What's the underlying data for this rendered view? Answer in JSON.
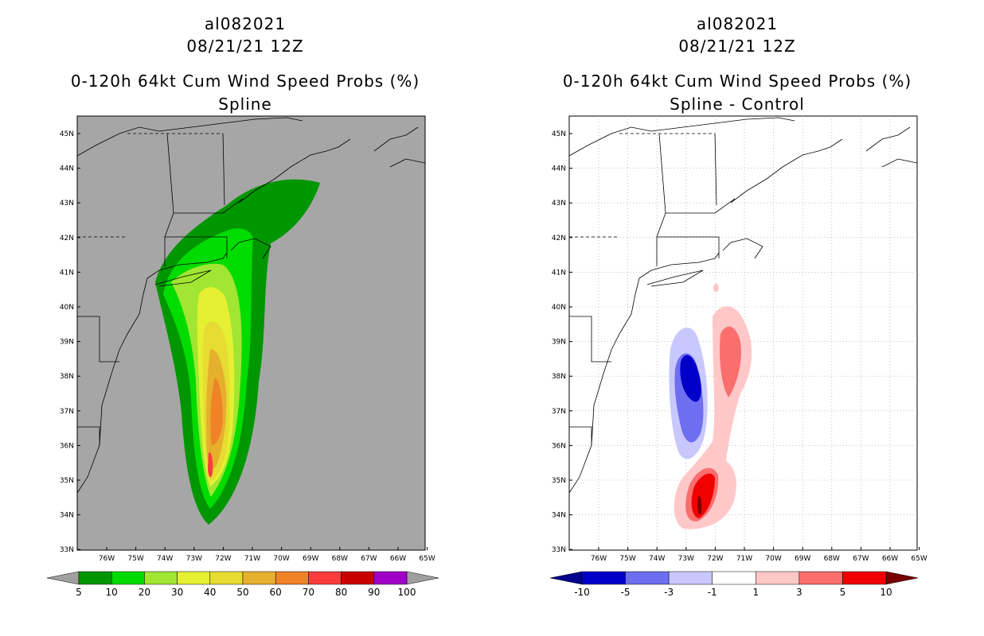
{
  "panels": [
    {
      "storm_id": "al082021",
      "datetime": "08/21/21 12Z",
      "product": "0-120h 64kt Cum Wind Speed Probs (%)",
      "subtitle": "Spline",
      "lat_labels": [
        "45N",
        "44N",
        "43N",
        "42N",
        "41N",
        "40N",
        "39N",
        "38N",
        "37N",
        "36N",
        "35N",
        "34N",
        "33N"
      ],
      "lon_labels": [
        "76W",
        "75W",
        "74W",
        "73W",
        "72W",
        "71W",
        "70W",
        "69W",
        "68W",
        "67W",
        "66W",
        "65W"
      ],
      "colorbar": {
        "labels": [
          "5",
          "10",
          "20",
          "30",
          "40",
          "50",
          "60",
          "70",
          "80",
          "90",
          "100"
        ],
        "colors": [
          "#009600",
          "#00dc00",
          "#a0e632",
          "#e6f032",
          "#e6dc32",
          "#e6af2d",
          "#f08228",
          "#fa3c3c",
          "#c80000",
          "#a000c8"
        ],
        "under_color": "#a0a0a0",
        "over_color": "#a0a0a0"
      },
      "background": "#a6a6a6"
    },
    {
      "storm_id": "al082021",
      "datetime": "08/21/21 12Z",
      "product": "0-120h 64kt Cum Wind Speed Probs (%)",
      "subtitle": "Spline - Control",
      "lat_labels": [
        "45N",
        "44N",
        "43N",
        "42N",
        "41N",
        "40N",
        "39N",
        "38N",
        "37N",
        "36N",
        "35N",
        "34N",
        "33N"
      ],
      "lon_labels": [
        "76W",
        "75W",
        "74W",
        "73W",
        "72W",
        "71W",
        "70W",
        "69W",
        "68W",
        "67W",
        "66W",
        "65W"
      ],
      "colorbar": {
        "labels": [
          "-10",
          "-5",
          "-3",
          "-1",
          "1",
          "3",
          "5",
          "10"
        ],
        "colors": [
          "#0000c8",
          "#6e6ef0",
          "#c8c8ff",
          "#ffffff",
          "#ffc8c8",
          "#fa6e6e",
          "#f00000"
        ],
        "under_color": "#00008c",
        "over_color": "#780000"
      },
      "background": "#ffffff"
    }
  ]
}
